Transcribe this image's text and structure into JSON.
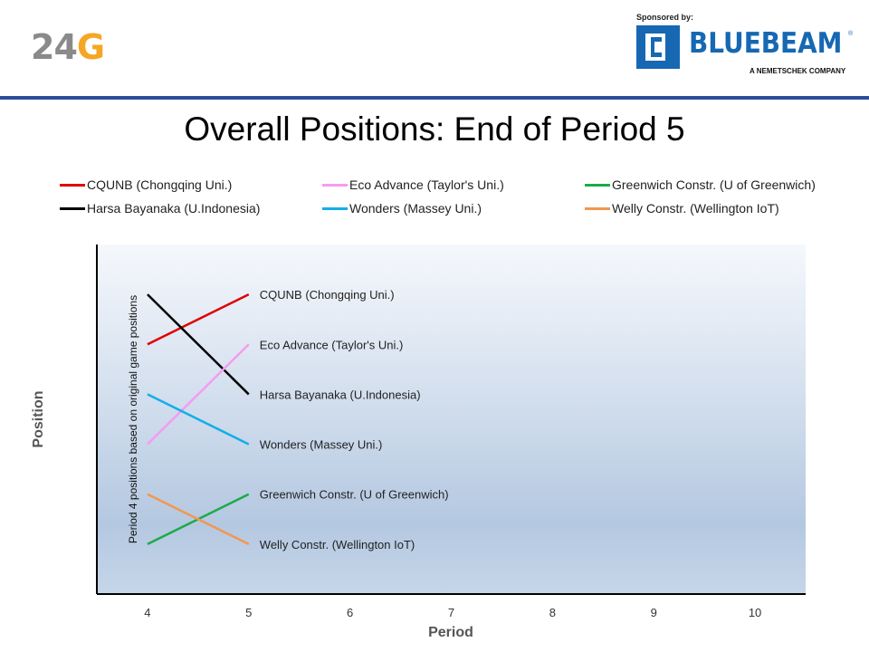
{
  "header": {
    "logo_main": "24",
    "logo_accent": "G",
    "sponsor_label": "Sponsored by:",
    "sponsor_name": "BLUEBEAM",
    "sponsor_reg": "®",
    "sponsor_tagline": "A NEMETSCHEK COMPANY",
    "brand_color": "#1668b3",
    "rule_color": "#2a4f9a"
  },
  "chart_data": {
    "type": "line",
    "title": "Overall Positions: End of Period 5",
    "xlabel": "Period",
    "ylabel": "Position",
    "annotation": "Period 4 positions based on original game positions",
    "x": [
      4,
      5,
      6,
      7,
      8,
      9,
      10
    ],
    "xlim": [
      3.5,
      10.5
    ],
    "ylim": [
      0.0,
      7.0
    ],
    "y_reversed": true,
    "grid": false,
    "legend_position": "top",
    "series": [
      {
        "name": "CQUNB (Chongqing Uni.)",
        "color": "#e00000",
        "x": [
          4,
          5
        ],
        "values": [
          2,
          1
        ],
        "end_label": "CQUNB (Chongqing Uni.)"
      },
      {
        "name": "Harsa Bayanaka (U.Indonesia)",
        "color": "#000000",
        "x": [
          4,
          5
        ],
        "values": [
          1,
          3
        ],
        "end_label": "Harsa Bayanaka (U.Indonesia)"
      },
      {
        "name": "Eco Advance (Taylor's Uni.)",
        "color": "#f59cf0",
        "x": [
          4,
          5
        ],
        "values": [
          4,
          2
        ],
        "end_label": "Eco Advance (Taylor's Uni.)"
      },
      {
        "name": "Wonders (Massey Uni.)",
        "color": "#14aee8",
        "x": [
          4,
          5
        ],
        "values": [
          3,
          4
        ],
        "end_label": "Wonders  (Massey Uni.)"
      },
      {
        "name": "Greenwich Constr. (U of Greenwich)",
        "color": "#1aab4a",
        "x": [
          4,
          5
        ],
        "values": [
          6,
          5
        ],
        "end_label": "Greenwich Constr. (U of Greenwich)"
      },
      {
        "name": "Welly Constr. (Wellington IoT)",
        "color": "#f4964e",
        "x": [
          4,
          5
        ],
        "values": [
          5,
          6
        ],
        "end_label": "Welly Constr. (Wellington IoT)"
      }
    ],
    "legend_order": [
      "CQUNB (Chongqing Uni.)",
      "Eco Advance (Taylor's Uni.)",
      "Greenwich Constr. (U of Greenwich)",
      "Harsa Bayanaka (U.Indonesia)",
      "Wonders (Massey Uni.)",
      "Welly Constr. (Wellington IoT)"
    ]
  }
}
